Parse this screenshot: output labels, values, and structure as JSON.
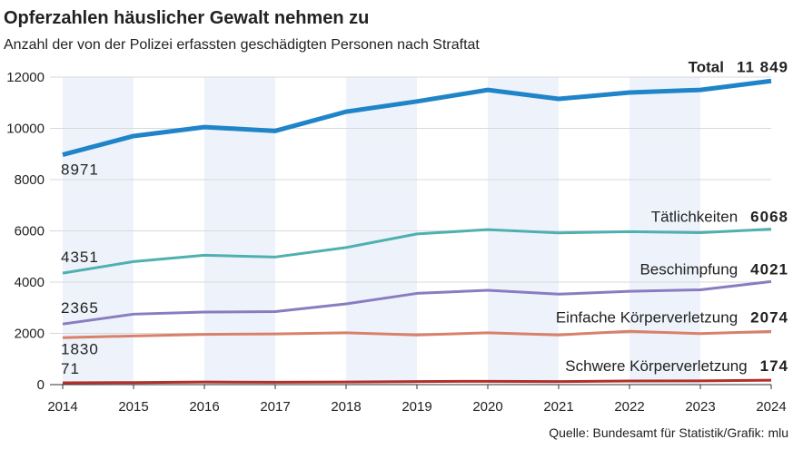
{
  "chart_data": {
    "type": "line",
    "title": "Opferzahlen häuslicher Gewalt nehmen zu",
    "subtitle": "Anzahl der von der Polizei erfassten geschädigten Personen nach Straftat",
    "source": "Quelle: Bundesamt für Statistik/Grafik: mlu",
    "x": [
      2014,
      2015,
      2016,
      2017,
      2018,
      2019,
      2020,
      2021,
      2022,
      2023,
      2024
    ],
    "xlim": [
      2014,
      2024
    ],
    "xticks": [
      2014,
      2015,
      2016,
      2017,
      2018,
      2019,
      2020,
      2021,
      2022,
      2023,
      2024
    ],
    "ylim": [
      0,
      12000
    ],
    "yticks": [
      0,
      2000,
      4000,
      6000,
      8000,
      10000,
      12000
    ],
    "grid": true,
    "series": [
      {
        "name": "Total",
        "color": "#1f85c8",
        "values": [
          8971,
          9700,
          10050,
          9900,
          10650,
          11050,
          11500,
          11150,
          11400,
          11500,
          11849
        ],
        "value_labels": [
          "8971",
          null,
          null,
          null,
          null,
          null,
          null,
          null,
          null,
          null,
          "11 849"
        ]
      },
      {
        "name": "Tätlichkeiten",
        "color": "#4fb0b0",
        "values": [
          4351,
          4800,
          5050,
          4980,
          5350,
          5880,
          6050,
          5920,
          5970,
          5930,
          6068
        ]
      },
      {
        "name": "Beschimpfung",
        "color": "#8a7cc0",
        "values": [
          2365,
          2750,
          2830,
          2850,
          3150,
          3560,
          3680,
          3530,
          3640,
          3700,
          4021
        ]
      },
      {
        "name": "Einfache Körperverletzung",
        "color": "#d9806a",
        "values": [
          1830,
          1900,
          1960,
          1980,
          2020,
          1940,
          2020,
          1940,
          2080,
          1990,
          2074
        ]
      },
      {
        "name": "Schwere Körperverletzung",
        "color": "#b2302a",
        "values": [
          71,
          80,
          100,
          95,
          100,
          120,
          130,
          120,
          140,
          145,
          174
        ]
      }
    ]
  }
}
